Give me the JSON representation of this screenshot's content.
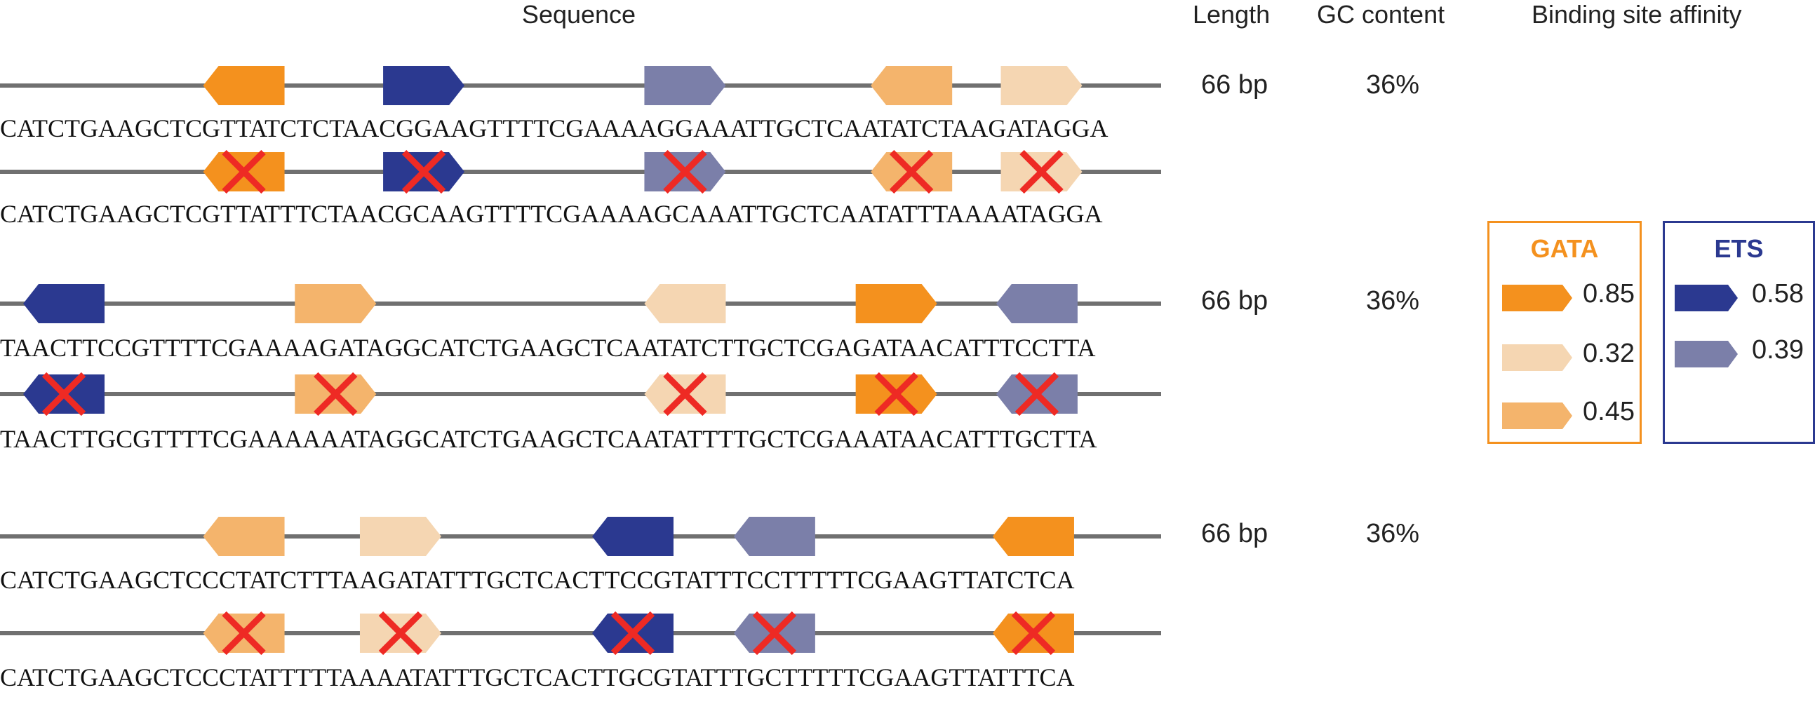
{
  "headers": {
    "sequence": "Sequence",
    "length": "Length",
    "gc": "GC content",
    "affinity": "Binding site affinity"
  },
  "colors": {
    "gata_085": "#F4911E",
    "gata_032": "#F5D6B2",
    "gata_045": "#F4B46C",
    "ets_058": "#2B3990",
    "ets_039": "#7B7FA9",
    "line": "#707070",
    "cross": "#EE2A24",
    "gata_border": "#F4911E",
    "ets_border": "#2B3990"
  },
  "groups": [
    {
      "length": "66 bp",
      "gc": "36%",
      "sequences": [
        "CATCTGAAGCTCGTTATCTCTAACGGAAGTTTTCGAAAAGGAAATTGCTCAATATCTAAGATAGGA",
        "CATCTGAAGCTCGTTATTTCTAACGCAAGTTTTCGAAAAGCAAATTGCTCAATATTTAAAATAGGA"
      ],
      "sites": [
        {
          "factor": "GATA",
          "affinity": 0.85,
          "dir": "left",
          "pos": 0.21
        },
        {
          "factor": "ETS",
          "affinity": 0.58,
          "dir": "right",
          "pos": 0.365
        },
        {
          "factor": "ETS",
          "affinity": 0.39,
          "dir": "right",
          "pos": 0.59
        },
        {
          "factor": "GATA",
          "affinity": 0.45,
          "dir": "left",
          "pos": 0.785
        },
        {
          "factor": "GATA",
          "affinity": 0.32,
          "dir": "right",
          "pos": 0.897
        }
      ]
    },
    {
      "length": "66 bp",
      "gc": "36%",
      "sequences": [
        "TAACTTCCGTTTTCGAAAAGATAGGCATCTGAAGCTCAATATCTTGCTCGAGATAACATTTCCTTA",
        "TAACTTGCGTTTTCGAAAAAATAGGCATCTGAAGCTCAATATTTTGCTCGAAATAACATTTGCTTA"
      ],
      "sites": [
        {
          "factor": "ETS",
          "affinity": 0.58,
          "dir": "left",
          "pos": 0.055
        },
        {
          "factor": "GATA",
          "affinity": 0.45,
          "dir": "right",
          "pos": 0.289
        },
        {
          "factor": "GATA",
          "affinity": 0.32,
          "dir": "left",
          "pos": 0.59
        },
        {
          "factor": "GATA",
          "affinity": 0.85,
          "dir": "right",
          "pos": 0.772
        },
        {
          "factor": "ETS",
          "affinity": 0.39,
          "dir": "left",
          "pos": 0.893
        }
      ]
    },
    {
      "length": "66 bp",
      "gc": "36%",
      "sequences": [
        "CATCTGAAGCTCCCTATCTTTAAGATATTTGCTCACTTCCGTATTTCCTTTTTCGAAGTTATCTCA",
        "CATCTGAAGCTCCCTATTTTTAAAATATTTGCTCACTTGCGTATTTGCTTTTTCGAAGTTATTTCA"
      ],
      "sites": [
        {
          "factor": "GATA",
          "affinity": 0.45,
          "dir": "left",
          "pos": 0.21
        },
        {
          "factor": "GATA",
          "affinity": 0.32,
          "dir": "right",
          "pos": 0.345
        },
        {
          "factor": "ETS",
          "affinity": 0.58,
          "dir": "left",
          "pos": 0.545
        },
        {
          "factor": "ETS",
          "affinity": 0.39,
          "dir": "left",
          "pos": 0.667
        },
        {
          "factor": "GATA",
          "affinity": 0.85,
          "dir": "left",
          "pos": 0.89
        }
      ]
    }
  ],
  "legend": {
    "gata": {
      "title": "GATA",
      "items": [
        {
          "value": "0.85",
          "color_key": "gata_085"
        },
        {
          "value": "0.32",
          "color_key": "gata_032"
        },
        {
          "value": "0.45",
          "color_key": "gata_045"
        }
      ]
    },
    "ets": {
      "title": "ETS",
      "items": [
        {
          "value": "0.58",
          "color_key": "ets_058"
        },
        {
          "value": "0.39",
          "color_key": "ets_039"
        }
      ]
    }
  }
}
